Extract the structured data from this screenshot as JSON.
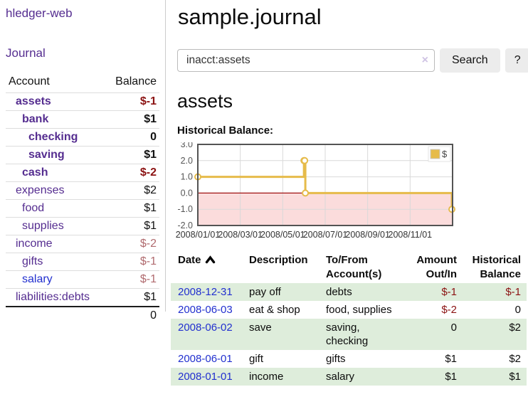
{
  "app": {
    "brand": "hledger-web",
    "nav": {
      "journal": "Journal"
    }
  },
  "sidebar": {
    "header": {
      "account": "Account",
      "balance": "Balance"
    },
    "accounts": [
      {
        "label": "assets",
        "indent": 1,
        "bold": true,
        "balance": "$-1",
        "balance_style": "neg"
      },
      {
        "label": "bank",
        "indent": 2,
        "bold": true,
        "balance": "$1",
        "balance_style": "pos"
      },
      {
        "label": "checking",
        "indent": 3,
        "bold": true,
        "balance": "0",
        "balance_style": "pos"
      },
      {
        "label": "saving",
        "indent": 3,
        "bold": true,
        "balance": "$1",
        "balance_style": "pos"
      },
      {
        "label": "cash",
        "indent": 2,
        "bold": true,
        "balance": "$-2",
        "balance_style": "neg"
      },
      {
        "label": "expenses",
        "indent": 1,
        "bold": false,
        "balance": "$2",
        "balance_style": "pos"
      },
      {
        "label": "food",
        "indent": 2,
        "bold": false,
        "balance": "$1",
        "balance_style": "pos"
      },
      {
        "label": "supplies",
        "indent": 2,
        "bold": false,
        "balance": "$1",
        "balance_style": "pos"
      },
      {
        "label": "income",
        "indent": 1,
        "bold": false,
        "balance": "$-2",
        "balance_style": "neg-light"
      },
      {
        "label": "gifts",
        "indent": 2,
        "bold": false,
        "balance": "$-1",
        "balance_style": "neg-light"
      },
      {
        "label": "salary",
        "indent": 2,
        "bold": false,
        "balance": "$-1",
        "balance_style": "neg-light",
        "link_blue": true
      },
      {
        "label": "liabilities:debts",
        "indent": 1,
        "bold": false,
        "balance": "$1",
        "balance_style": "pos"
      }
    ],
    "total": "0"
  },
  "main": {
    "title": "sample.journal",
    "search": {
      "value": "inacct:assets",
      "clear_glyph": "×",
      "search_button": "Search",
      "help_button": "?"
    },
    "account_heading": "assets",
    "chart_label": "Historical Balance:",
    "register": {
      "headers": [
        {
          "label": "Date",
          "sorted": "asc",
          "align": "left"
        },
        {
          "label": "Description",
          "align": "left"
        },
        {
          "label": "To/From Account(s)",
          "align": "left"
        },
        {
          "label": "Amount Out/In",
          "align": "right"
        },
        {
          "label": "Historical Balance",
          "align": "right"
        }
      ],
      "rows": [
        {
          "date": "2008-12-31",
          "description": "pay off",
          "accounts": "debts",
          "amount": "$-1",
          "amount_negative": true,
          "balance": "$-1",
          "balance_negative": true
        },
        {
          "date": "2008-06-03",
          "description": "eat & shop",
          "accounts": "food, supplies",
          "amount": "$-2",
          "amount_negative": true,
          "balance": "0",
          "balance_negative": false
        },
        {
          "date": "2008-06-02",
          "description": "save",
          "accounts": "saving, checking",
          "amount": "0",
          "amount_negative": false,
          "balance": "$2",
          "balance_negative": false
        },
        {
          "date": "2008-06-01",
          "description": "gift",
          "accounts": "gifts",
          "amount": "$1",
          "amount_negative": false,
          "balance": "$2",
          "balance_negative": false
        },
        {
          "date": "2008-01-01",
          "description": "income",
          "accounts": "salary",
          "amount": "$1",
          "amount_negative": false,
          "balance": "$1",
          "balance_negative": false
        }
      ]
    }
  },
  "chart_data": {
    "type": "line",
    "step": true,
    "title": "Historical Balance",
    "series": [
      {
        "name": "$",
        "points": [
          [
            "2008-01-01",
            1
          ],
          [
            "2008-06-01",
            2
          ],
          [
            "2008-06-02",
            2
          ],
          [
            "2008-06-03",
            0
          ],
          [
            "2008-12-31",
            -1
          ]
        ]
      }
    ],
    "ylim": [
      -2,
      3
    ],
    "yticks": [
      3.0,
      2.0,
      1.0,
      0.0,
      -1.0,
      -2.0
    ],
    "xlim": [
      "2008-01-01",
      "2009-01-01"
    ],
    "xticks": [
      "2008/01/01",
      "2008/03/01",
      "2008/05/01",
      "2008/07/01",
      "2008/09/01",
      "2008/11/01"
    ],
    "legend": {
      "position": "top-right",
      "label": "$"
    },
    "grid": true,
    "negative_region": true
  },
  "colors": {
    "link_purple": "#552d90",
    "link_blue": "#2230cf",
    "negative_dark": "#8b1212",
    "negative_light": "#b06a6e",
    "row_stripe_green": "#deeddb",
    "chart_gold": "#e6bb4a",
    "chart_negative_region": "#fbdcdc",
    "chart_zero_line": "#a01010",
    "chart_border": "#545454",
    "chart_gridline": "#d9d9d9",
    "button_bg": "#ececec"
  }
}
